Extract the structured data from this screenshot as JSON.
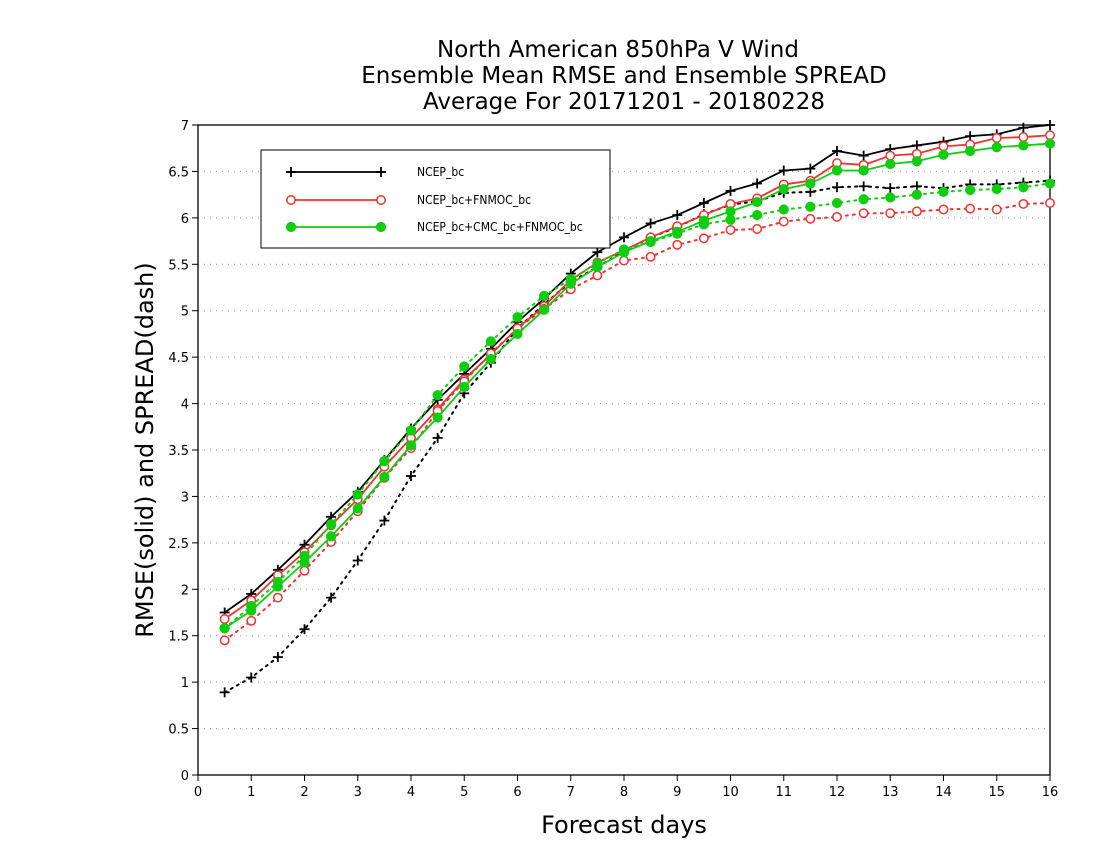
{
  "chart_data": {
    "type": "line",
    "title_lines": [
      "North American 850hPa V Wind",
      "Ensemble Mean RMSE and Ensemble SPREAD",
      "Average For 20171201 - 20180228"
    ],
    "xlabel": "Forecast days",
    "ylabel": "RMSE(solid) and SPREAD(dash)",
    "xlim": [
      0,
      16
    ],
    "ylim": [
      0,
      7
    ],
    "x_ticks": [
      "0",
      "1",
      "2",
      "3",
      "4",
      "5",
      "6",
      "7",
      "8",
      "9",
      "10",
      "11",
      "12",
      "13",
      "14",
      "15",
      "16"
    ],
    "y_ticks": [
      "0",
      "0.5",
      "1",
      "1.5",
      "2",
      "2.5",
      "3",
      "3.5",
      "4",
      "4.5",
      "5",
      "5.5",
      "6",
      "6.5",
      "7"
    ],
    "grid": "horizontal dotted",
    "legend_position": "top-left",
    "x": [
      0.5,
      1,
      1.5,
      2,
      2.5,
      3,
      3.5,
      4,
      4.5,
      5,
      5.5,
      6,
      6.5,
      7,
      7.5,
      8,
      8.5,
      9,
      9.5,
      10,
      10.5,
      11,
      11.5,
      12,
      12.5,
      13,
      13.5,
      14,
      14.5,
      15,
      15.5,
      16
    ],
    "series": [
      {
        "name": "NCEP_bc",
        "color": "#000000",
        "marker": "plus",
        "rmse": [
          1.75,
          1.95,
          2.21,
          2.48,
          2.78,
          3.05,
          3.39,
          3.73,
          4.04,
          4.32,
          4.59,
          4.88,
          5.13,
          5.4,
          5.63,
          5.79,
          5.94,
          6.03,
          6.16,
          6.29,
          6.37,
          6.51,
          6.53,
          6.72,
          6.67,
          6.74,
          6.78,
          6.82,
          6.88,
          6.9,
          6.97,
          7.0
        ],
        "spread": [
          0.89,
          1.05,
          1.27,
          1.57,
          1.91,
          2.31,
          2.74,
          3.22,
          3.63,
          4.11,
          4.44,
          4.81,
          5.07,
          5.31,
          5.47,
          5.64,
          5.79,
          5.9,
          6.04,
          6.14,
          6.18,
          6.27,
          6.28,
          6.33,
          6.34,
          6.32,
          6.34,
          6.32,
          6.36,
          6.36,
          6.38,
          6.4
        ]
      },
      {
        "name": "NCEP_bc+FNMOC_bc",
        "color": "#ee3333",
        "marker": "open-circle",
        "rmse": [
          1.68,
          1.88,
          2.15,
          2.4,
          2.69,
          2.97,
          3.32,
          3.63,
          3.94,
          4.26,
          4.53,
          4.81,
          5.05,
          5.33,
          5.52,
          5.65,
          5.79,
          5.91,
          6.03,
          6.15,
          6.21,
          6.36,
          6.4,
          6.59,
          6.57,
          6.67,
          6.69,
          6.77,
          6.79,
          6.86,
          6.87,
          6.89
        ],
        "spread": [
          1.45,
          1.66,
          1.91,
          2.2,
          2.51,
          2.84,
          3.2,
          3.52,
          3.92,
          4.24,
          4.54,
          4.81,
          5.02,
          5.23,
          5.38,
          5.54,
          5.58,
          5.71,
          5.78,
          5.87,
          5.88,
          5.96,
          5.99,
          6.01,
          6.05,
          6.05,
          6.07,
          6.09,
          6.1,
          6.09,
          6.15,
          6.16
        ]
      },
      {
        "name": "NCEP_bc+CMC_bc+FNMOC_bc",
        "color": "#11cc11",
        "marker": "filled-circle",
        "rmse": [
          1.58,
          1.77,
          2.03,
          2.29,
          2.57,
          2.87,
          3.21,
          3.55,
          3.85,
          4.18,
          4.48,
          4.75,
          5.01,
          5.29,
          5.47,
          5.63,
          5.75,
          5.85,
          5.97,
          6.07,
          6.17,
          6.31,
          6.37,
          6.51,
          6.51,
          6.58,
          6.61,
          6.68,
          6.72,
          6.76,
          6.78,
          6.8
        ],
        "spread": [
          1.58,
          1.82,
          2.08,
          2.36,
          2.7,
          3.02,
          3.38,
          3.71,
          4.09,
          4.4,
          4.67,
          4.93,
          5.16,
          5.34,
          5.51,
          5.66,
          5.74,
          5.83,
          5.93,
          5.98,
          6.03,
          6.09,
          6.12,
          6.16,
          6.2,
          6.22,
          6.25,
          6.28,
          6.3,
          6.31,
          6.33,
          6.37
        ]
      }
    ]
  }
}
